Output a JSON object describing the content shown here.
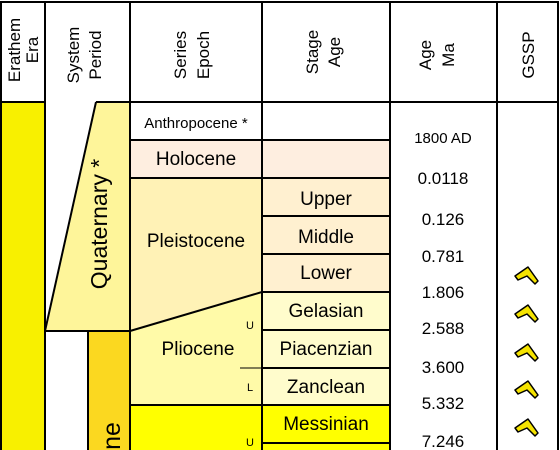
{
  "header": {
    "erathem": [
      "Erathem",
      "Era"
    ],
    "system": [
      "System",
      "Period"
    ],
    "series": [
      "Series",
      "Epoch"
    ],
    "stage": [
      "Stage",
      "Age"
    ],
    "age": [
      "Age",
      "Ma"
    ],
    "gssp": "GSSP"
  },
  "periods": {
    "quaternary": "Quaternary *",
    "neogene_partial": "ne"
  },
  "series": {
    "anthropocene": "Anthropocene *",
    "holocene": "Holocene",
    "pleistocene": "Pleistocene",
    "pliocene": "Pliocene"
  },
  "stages": {
    "upper": "Upper",
    "middle": "Middle",
    "lower": "Lower",
    "gelasian": "Gelasian",
    "piacenzian": "Piacenzian",
    "zanclean": "Zanclean",
    "messinian": "Messinian"
  },
  "subdivision_marks": {
    "pliocene_upper": "U",
    "pliocene_lower": "L",
    "miocene_upper": "U"
  },
  "ages": [
    "1800 AD",
    "0.0118",
    "0.126",
    "0.781",
    "1.806",
    "2.588",
    "3.600",
    "5.332",
    "7.246"
  ],
  "gssp_markers": {
    "icon": "golden-spike-icon",
    "count": 5
  },
  "colors": {
    "cenozoic": "#f8f000",
    "neogene": "#fbd820",
    "quaternary": "#fef59a",
    "holocene": "#feeee0",
    "pleistocene": "#fff2b6",
    "pleistocene_stage": "#fff0d0",
    "pliocene": "#fffaa8",
    "pliocene_stage": "#fffccc",
    "miocene": "#ffff00",
    "spike": "#f5e300",
    "line": "#000000"
  }
}
